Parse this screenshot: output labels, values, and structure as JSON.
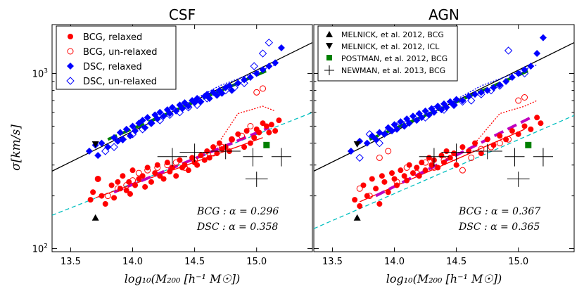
{
  "chart_data": [
    {
      "type": "scatter",
      "title": "CSF",
      "xlabel": "log₁₀(M₂₀₀ [h⁻¹ M☉])",
      "ylabel": "σ[km/s]",
      "xscale": "linear",
      "yscale": "log",
      "xlim": [
        13.35,
        15.45
      ],
      "ylim": [
        96,
        1900
      ],
      "xticks": [
        "13.5",
        "14.0",
        "14.5",
        "15.0"
      ],
      "yticks": [
        "10²",
        "10³"
      ],
      "legend": {
        "placement": "top-left",
        "entries": [
          "BCG, relaxed",
          "BCG, un-relaxed",
          "DSC, relaxed",
          "DSC, un-relaxed"
        ]
      },
      "annotations": [
        "BCG : α = 0.296",
        "DSC : α = 0.358"
      ],
      "series": [
        {
          "name": "BCG, relaxed",
          "color": "#ff0000",
          "marker": "filled-circle",
          "x": [
            13.66,
            13.68,
            13.72,
            13.75,
            13.78,
            13.83,
            13.85,
            13.88,
            13.9,
            13.92,
            13.95,
            13.97,
            13.98,
            14.0,
            14.02,
            14.05,
            14.08,
            14.1,
            14.12,
            14.15,
            14.18,
            14.2,
            14.22,
            14.25,
            14.28,
            14.3,
            14.32,
            14.35,
            14.38,
            14.4,
            14.42,
            14.45,
            14.48,
            14.5,
            14.52,
            14.55,
            14.58,
            14.6,
            14.62,
            14.65,
            14.68,
            14.7,
            14.72,
            14.75,
            14.78,
            14.8,
            14.85,
            14.9,
            14.92,
            14.95,
            14.98,
            15.0,
            15.02,
            15.05,
            15.08,
            15.1,
            15.12,
            15.15,
            15.18
          ],
          "y": [
            190,
            210,
            250,
            200,
            180,
            230,
            195,
            240,
            220,
            260,
            215,
            240,
            205,
            280,
            230,
            250,
            260,
            225,
            290,
            240,
            270,
            300,
            260,
            250,
            310,
            275,
            290,
            260,
            320,
            290,
            300,
            280,
            330,
            310,
            300,
            340,
            320,
            360,
            330,
            380,
            350,
            400,
            370,
            380,
            360,
            420,
            450,
            380,
            470,
            400,
            430,
            480,
            460,
            520,
            500,
            460,
            510,
            470,
            540
          ]
        },
        {
          "name": "BCG, un-relaxed",
          "color": "#ff0000",
          "marker": "open-circle",
          "x": [
            13.72,
            13.8,
            13.88,
            13.95,
            14.0,
            14.05,
            14.12,
            14.2,
            14.28,
            14.35,
            14.42,
            14.5,
            14.58,
            14.65,
            14.72,
            14.8,
            14.88,
            14.95,
            15.0,
            15.05
          ],
          "y": [
            250,
            200,
            220,
            230,
            245,
            270,
            280,
            290,
            300,
            310,
            290,
            320,
            340,
            350,
            380,
            420,
            440,
            500,
            780,
            820
          ]
        },
        {
          "name": "DSC, relaxed",
          "color": "#0000ff",
          "marker": "filled-diamond",
          "x": [
            13.65,
            13.7,
            13.72,
            13.75,
            13.8,
            13.85,
            13.88,
            13.9,
            13.92,
            13.95,
            13.98,
            14.0,
            14.02,
            14.05,
            14.08,
            14.1,
            14.12,
            14.15,
            14.18,
            14.2,
            14.22,
            14.25,
            14.28,
            14.3,
            14.32,
            14.35,
            14.38,
            14.4,
            14.42,
            14.45,
            14.48,
            14.5,
            14.52,
            14.55,
            14.58,
            14.6,
            14.62,
            14.65,
            14.68,
            14.7,
            14.72,
            14.75,
            14.78,
            14.8,
            14.85,
            14.9,
            14.95,
            15.0,
            15.05,
            15.1,
            15.15,
            15.2
          ],
          "y": [
            360,
            390,
            340,
            400,
            380,
            430,
            410,
            460,
            420,
            480,
            440,
            500,
            470,
            520,
            540,
            490,
            560,
            520,
            580,
            550,
            600,
            570,
            620,
            590,
            640,
            610,
            660,
            630,
            680,
            650,
            700,
            680,
            720,
            690,
            740,
            760,
            720,
            780,
            750,
            800,
            770,
            830,
            850,
            800,
            880,
            920,
            950,
            1000,
            1050,
            1100,
            1150,
            1400
          ]
        },
        {
          "name": "DSC, un-relaxed",
          "color": "#0000ff",
          "marker": "open-diamond",
          "x": [
            13.78,
            13.85,
            13.92,
            14.0,
            14.08,
            14.15,
            14.22,
            14.3,
            14.38,
            14.45,
            14.52,
            14.6,
            14.68,
            14.75,
            14.82,
            14.9,
            14.98,
            15.05,
            15.1
          ],
          "y": [
            360,
            380,
            420,
            450,
            480,
            520,
            540,
            580,
            600,
            640,
            660,
            720,
            760,
            800,
            830,
            880,
            1100,
            1300,
            1500
          ]
        },
        {
          "name": "MELNICK, et al. 2012, BCG",
          "color": "#000000",
          "marker": "up-triangle",
          "x": [
            13.7
          ],
          "y": [
            150
          ]
        },
        {
          "name": "MELNICK, et al. 2012, ICL",
          "color": "#000000",
          "marker": "down-triangle",
          "x": [
            13.7
          ],
          "y": [
            395
          ]
        },
        {
          "name": "POSTMAN, et al. 2012, BCG",
          "color": "#008000",
          "marker": "filled-square",
          "x": [
            15.08
          ],
          "y": [
            390
          ]
        },
        {
          "name": "NEWMAN, et al. 2013, BCG",
          "color": "#000000",
          "marker": "errorbar",
          "x": [
            14.32,
            14.5,
            14.75,
            14.97,
            15.0,
            15.2
          ],
          "y": [
            335,
            355,
            360,
            335,
            250,
            335
          ],
          "xerr": [
            0.12,
            0.12,
            0.12,
            0.08,
            0.09,
            0.08
          ],
          "yerr_frac": [
            0.12,
            0.12,
            0.1,
            0.12,
            0.1,
            0.12
          ]
        }
      ],
      "fit_lines": [
        {
          "color": "#000000",
          "dash": "solid",
          "x": [
            13.35,
            15.45
          ],
          "y": [
            276.9,
            1500
          ]
        },
        {
          "color": "#00bfbf",
          "dash": "dashed",
          "x": [
            13.35,
            15.45
          ],
          "y": [
            155,
            598.9
          ]
        },
        {
          "color": "#0000ff",
          "dash": "dotted",
          "x": [
            14.45,
            14.7,
            14.95,
            15.15
          ],
          "y": [
            680,
            850,
            990,
            1120
          ]
        },
        {
          "color": "#ff0000",
          "dash": "dotted",
          "x": [
            14.65,
            14.85,
            15.05,
            15.15
          ],
          "y": [
            360,
            590,
            650,
            610
          ]
        },
        {
          "color": "#ff0000",
          "dash": "solid",
          "x": [
            13.7,
            15.05
          ],
          "y": [
            195,
            430
          ]
        },
        {
          "color": "#008000",
          "dash": "dashed-thick",
          "x": [
            13.8,
            15.1
          ],
          "y": [
            420,
            1050
          ]
        },
        {
          "color": "#bf00bf",
          "dash": "dashed-thick",
          "x": [
            13.85,
            15.1
          ],
          "y": [
            210,
            490
          ]
        }
      ]
    },
    {
      "type": "scatter",
      "title": "AGN",
      "xlabel": "log₁₀(M₂₀₀ [h⁻¹ M☉])",
      "ylabel": "",
      "xscale": "linear",
      "yscale": "log",
      "xlim": [
        13.35,
        15.45
      ],
      "ylim": [
        96,
        1900
      ],
      "xticks": [
        "13.5",
        "14.0",
        "14.5",
        "15.0"
      ],
      "legend": {
        "placement": "top-left",
        "entries": [
          "MELNICK, et al. 2012, BCG",
          "MELNICK, et al. 2012, ICL",
          "POSTMAN, et al. 2012, BCG",
          "NEWMAN, et al. 2013, BCG"
        ]
      },
      "annotations": [
        "BCG : α = 0.367",
        "DSC : α = 0.365"
      ],
      "series": [
        {
          "name": "BCG, relaxed",
          "color": "#ff0000",
          "marker": "filled-circle",
          "x": [
            13.68,
            13.72,
            13.75,
            13.78,
            13.82,
            13.85,
            13.88,
            13.9,
            13.92,
            13.95,
            13.98,
            14.0,
            14.02,
            14.05,
            14.08,
            14.1,
            14.12,
            14.15,
            14.18,
            14.2,
            14.22,
            14.25,
            14.28,
            14.3,
            14.32,
            14.35,
            14.38,
            14.4,
            14.42,
            14.45,
            14.48,
            14.5,
            14.55,
            14.6,
            14.65,
            14.7,
            14.75,
            14.8,
            14.85,
            14.9,
            14.95,
            15.0,
            15.05,
            15.1,
            15.15,
            15.18
          ],
          "y": [
            190,
            175,
            230,
            200,
            250,
            220,
            180,
            260,
            240,
            210,
            270,
            250,
            230,
            280,
            260,
            245,
            300,
            270,
            290,
            260,
            310,
            280,
            330,
            300,
            320,
            290,
            340,
            310,
            360,
            330,
            350,
            300,
            380,
            360,
            400,
            350,
            420,
            390,
            440,
            420,
            470,
            450,
            500,
            480,
            560,
            520
          ]
        },
        {
          "name": "BCG, un-relaxed",
          "color": "#ff0000",
          "marker": "open-circle",
          "x": [
            13.72,
            13.8,
            13.88,
            13.95,
            14.02,
            14.1,
            14.18,
            14.25,
            14.32,
            14.4,
            14.48,
            14.55,
            14.62,
            14.7,
            14.78,
            14.85,
            14.92,
            15.0,
            15.05
          ],
          "y": [
            220,
            200,
            330,
            360,
            240,
            290,
            270,
            310,
            290,
            320,
            330,
            280,
            330,
            370,
            380,
            400,
            420,
            700,
            730
          ]
        },
        {
          "name": "DSC, relaxed",
          "color": "#0000ff",
          "marker": "filled-diamond",
          "x": [
            13.65,
            13.72,
            13.78,
            13.82,
            13.85,
            13.88,
            13.92,
            13.95,
            13.98,
            14.0,
            14.02,
            14.05,
            14.08,
            14.1,
            14.12,
            14.15,
            14.18,
            14.2,
            14.22,
            14.25,
            14.28,
            14.3,
            14.32,
            14.35,
            14.38,
            14.4,
            14.42,
            14.45,
            14.48,
            14.5,
            14.55,
            14.6,
            14.65,
            14.7,
            14.75,
            14.8,
            14.85,
            14.9,
            14.95,
            15.0,
            15.05,
            15.1,
            15.15,
            15.2
          ],
          "y": [
            360,
            410,
            400,
            440,
            420,
            460,
            450,
            490,
            470,
            510,
            480,
            530,
            500,
            550,
            520,
            570,
            540,
            590,
            560,
            610,
            580,
            630,
            600,
            650,
            620,
            670,
            640,
            690,
            660,
            710,
            700,
            740,
            760,
            780,
            800,
            830,
            860,
            900,
            950,
            1000,
            1050,
            1100,
            1300,
            1600
          ]
        },
        {
          "name": "DSC, un-relaxed",
          "color": "#0000ff",
          "marker": "open-diamond",
          "x": [
            13.72,
            13.8,
            13.88,
            13.95,
            14.02,
            14.1,
            14.18,
            14.25,
            14.32,
            14.4,
            14.48,
            14.55,
            14.62,
            14.7,
            14.78,
            14.85,
            14.92,
            15.05
          ],
          "y": [
            330,
            450,
            400,
            470,
            500,
            520,
            560,
            560,
            620,
            620,
            660,
            690,
            700,
            760,
            800,
            850,
            1350,
            1000
          ]
        },
        {
          "name": "MELNICK, et al. 2012, BCG",
          "color": "#000000",
          "marker": "up-triangle",
          "x": [
            13.7
          ],
          "y": [
            150
          ]
        },
        {
          "name": "MELNICK, et al. 2012, ICL",
          "color": "#000000",
          "marker": "down-triangle",
          "x": [
            13.7
          ],
          "y": [
            395
          ]
        },
        {
          "name": "POSTMAN, et al. 2012, BCG",
          "color": "#008000",
          "marker": "filled-square",
          "x": [
            15.08
          ],
          "y": [
            390
          ]
        },
        {
          "name": "NEWMAN, et al. 2013, BCG",
          "color": "#000000",
          "marker": "errorbar",
          "x": [
            14.32,
            14.5,
            14.75,
            14.97,
            15.0,
            15.2
          ],
          "y": [
            335,
            355,
            360,
            335,
            250,
            335
          ],
          "xerr": [
            0.12,
            0.12,
            0.12,
            0.08,
            0.09,
            0.08
          ],
          "yerr_frac": [
            0.12,
            0.12,
            0.1,
            0.12,
            0.1,
            0.12
          ]
        }
      ],
      "fit_lines": [
        {
          "color": "#000000",
          "dash": "solid",
          "x": [
            13.35,
            15.45
          ],
          "y": [
            276.9,
            1500
          ]
        },
        {
          "color": "#00bfbf",
          "dash": "dashed",
          "x": [
            13.35,
            15.45
          ],
          "y": [
            130,
            575.8
          ]
        },
        {
          "color": "#0000ff",
          "dash": "dotted",
          "x": [
            14.45,
            14.7,
            14.95,
            15.15
          ],
          "y": [
            680,
            850,
            990,
            1120
          ]
        },
        {
          "color": "#ff0000",
          "dash": "dotted",
          "x": [
            14.65,
            14.85,
            15.05,
            15.15
          ],
          "y": [
            400,
            590,
            650,
            700
          ]
        },
        {
          "color": "#ff0000",
          "dash": "solid",
          "x": [
            13.72,
            15.05
          ],
          "y": [
            185,
            480
          ]
        },
        {
          "color": "#008000",
          "dash": "dashed-thick",
          "x": [
            13.8,
            15.1
          ],
          "y": [
            420,
            1050
          ]
        },
        {
          "color": "#bf00bf",
          "dash": "dashed-thick",
          "x": [
            13.85,
            15.1
          ],
          "y": [
            200,
            560
          ]
        }
      ]
    }
  ]
}
